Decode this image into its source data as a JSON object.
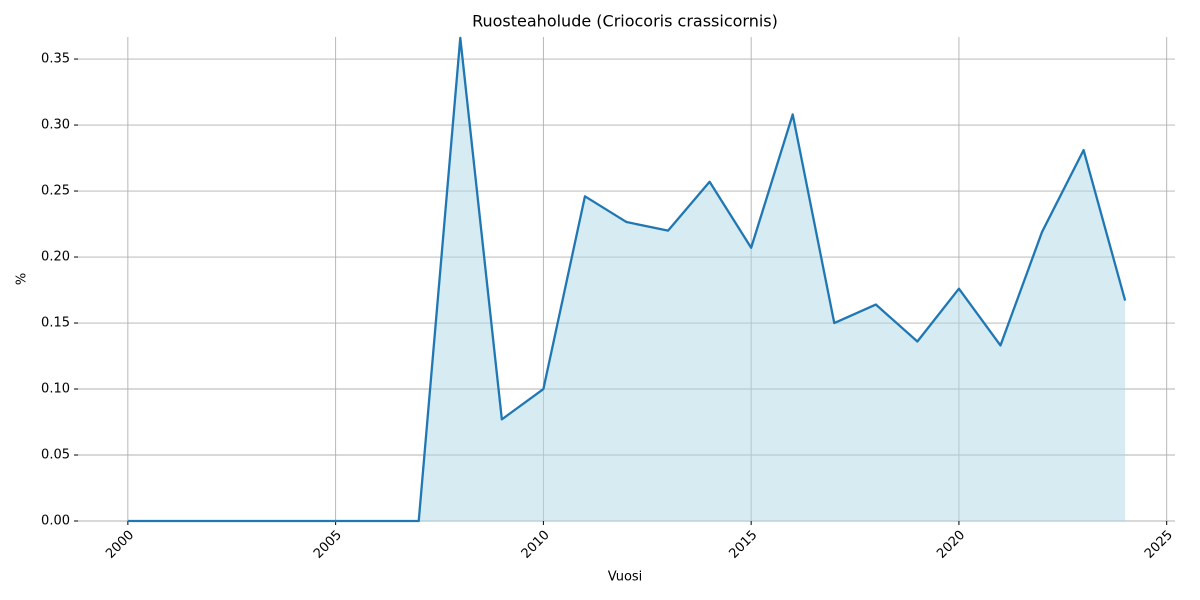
{
  "chart_data": {
    "type": "line",
    "title": "Ruosteaholude (Criocoris crassicornis)",
    "x_label": "Vuosi",
    "y_label": "%",
    "x": [
      2000,
      2001,
      2002,
      2003,
      2004,
      2005,
      2006,
      2007,
      2008,
      2009,
      2010,
      2011,
      2012,
      2013,
      2014,
      2015,
      2016,
      2017,
      2018,
      2019,
      2020,
      2021,
      2022,
      2023,
      2024
    ],
    "series": [
      {
        "name": "Ruosteaholude",
        "color": "#1f77b4",
        "fill": "#add8e6",
        "values": [
          0,
          0,
          0,
          0,
          0,
          0,
          0,
          0,
          0.366,
          0.077,
          0.1,
          0.246,
          0.2265,
          0.22,
          0.257,
          0.207,
          0.308,
          0.15,
          0.164,
          0.136,
          0.176,
          0.133,
          0.219,
          0.281,
          0.167
        ]
      }
    ],
    "xlim": [
      1998.8,
      2025.2
    ],
    "xticks": [
      2000,
      2005,
      2010,
      2015,
      2020,
      2025
    ],
    "ylim": [
      0,
      0.3667
    ],
    "yticks": [
      {
        "value": 0,
        "label": "0.00"
      },
      {
        "value": 0.05,
        "label": "0.05"
      },
      {
        "value": 0.1,
        "label": "0.10"
      },
      {
        "value": 0.15,
        "label": "0.15"
      },
      {
        "value": 0.2,
        "label": "0.20"
      },
      {
        "value": 0.25,
        "label": "0.25"
      },
      {
        "value": 0.3,
        "label": "0.30"
      },
      {
        "value": 0.35,
        "label": "0.35"
      }
    ],
    "grid": true
  }
}
